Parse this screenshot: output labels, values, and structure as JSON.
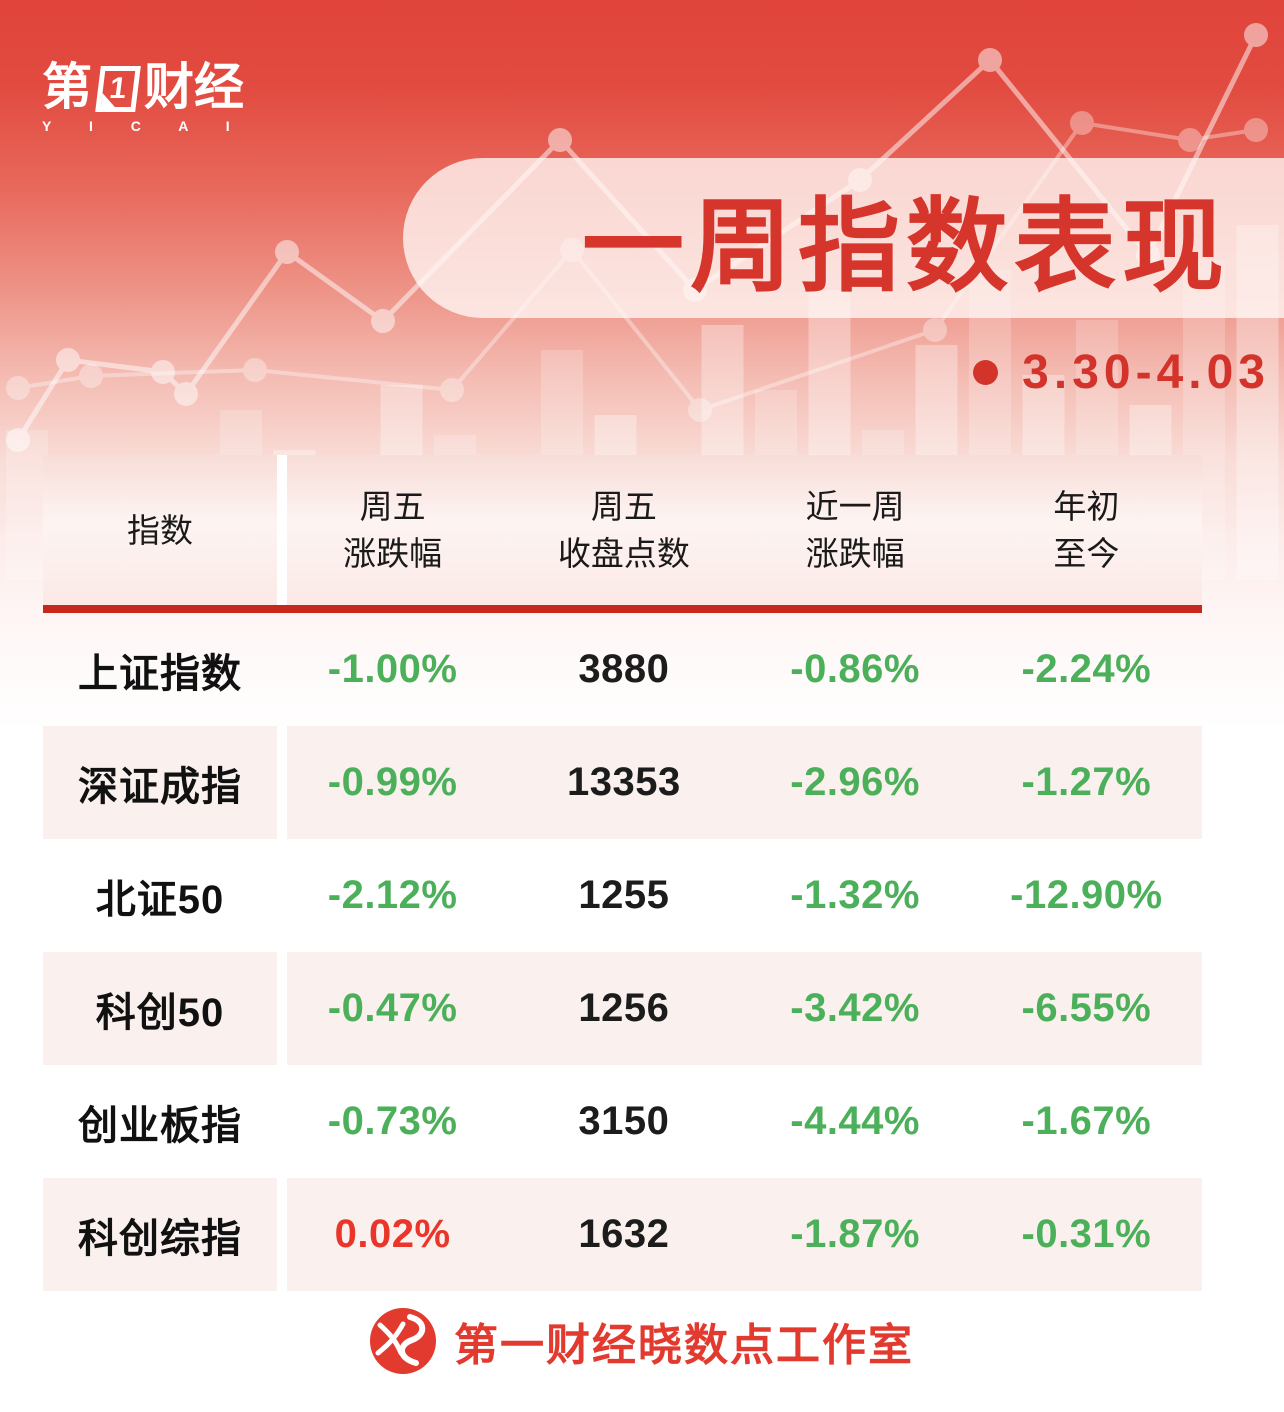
{
  "brand": {
    "logo_char1": "第",
    "logo_num": "1",
    "logo_chars2": "财经",
    "logo_sub": "Y I C A I"
  },
  "banner": {
    "title": "一周指数表现",
    "date_range": "3.30-4.03"
  },
  "table": {
    "columns": [
      [
        "指数"
      ],
      [
        "周五",
        "涨跌幅"
      ],
      [
        "周五",
        "收盘点数"
      ],
      [
        "近一周",
        "涨跌幅"
      ],
      [
        "年初",
        "至今"
      ]
    ],
    "rows": [
      {
        "name": "上证指数",
        "friday": {
          "t": "-1.00%",
          "c": "neg"
        },
        "close": "3880",
        "week": {
          "t": "-0.86%",
          "c": "neg"
        },
        "ytd": {
          "t": "-2.24%",
          "c": "neg"
        }
      },
      {
        "name": "深证成指",
        "friday": {
          "t": "-0.99%",
          "c": "neg"
        },
        "close": "13353",
        "week": {
          "t": "-2.96%",
          "c": "neg"
        },
        "ytd": {
          "t": "-1.27%",
          "c": "neg"
        }
      },
      {
        "name": "北证50",
        "friday": {
          "t": "-2.12%",
          "c": "neg"
        },
        "close": "1255",
        "week": {
          "t": "-1.32%",
          "c": "neg"
        },
        "ytd": {
          "t": "-12.90%",
          "c": "neg"
        }
      },
      {
        "name": "科创50",
        "friday": {
          "t": "-0.47%",
          "c": "neg"
        },
        "close": "1256",
        "week": {
          "t": "-3.42%",
          "c": "neg"
        },
        "ytd": {
          "t": "-6.55%",
          "c": "neg"
        }
      },
      {
        "name": "创业板指",
        "friday": {
          "t": "-0.73%",
          "c": "neg"
        },
        "close": "3150",
        "week": {
          "t": "-4.44%",
          "c": "neg"
        },
        "ytd": {
          "t": "-1.67%",
          "c": "neg"
        }
      },
      {
        "name": "科创综指",
        "friday": {
          "t": "0.02%",
          "c": "pos"
        },
        "close": "1632",
        "week": {
          "t": "-1.87%",
          "c": "neg"
        },
        "ytd": {
          "t": "-0.31%",
          "c": "neg"
        }
      }
    ]
  },
  "footer": {
    "studio": "第一财经晓数点工作室"
  },
  "colors": {
    "title_red": "#d6352c",
    "divider_red": "#c7281d",
    "positive_red": "#ea352b",
    "negative_green": "#4cb05a",
    "row_pink": "#faf1ee"
  },
  "chart_data": {
    "type": "table",
    "title": "一周指数表现",
    "subtitle": "3.30-4.03",
    "columns": [
      "指数",
      "周五涨跌幅",
      "周五收盘点数",
      "近一周涨跌幅",
      "年初至今"
    ],
    "rows": [
      [
        "上证指数",
        "-1.00%",
        "3880",
        "-0.86%",
        "-2.24%"
      ],
      [
        "深证成指",
        "-0.99%",
        "13353",
        "-2.96%",
        "-1.27%"
      ],
      [
        "北证50",
        "-2.12%",
        "1255",
        "-1.32%",
        "-12.90%"
      ],
      [
        "科创50",
        "-0.47%",
        "1256",
        "-3.42%",
        "-6.55%"
      ],
      [
        "创业板指",
        "-0.73%",
        "3150",
        "-4.44%",
        "-1.67%"
      ],
      [
        "科创综指",
        "0.02%",
        "1632",
        "-1.87%",
        "-0.31%"
      ]
    ]
  }
}
